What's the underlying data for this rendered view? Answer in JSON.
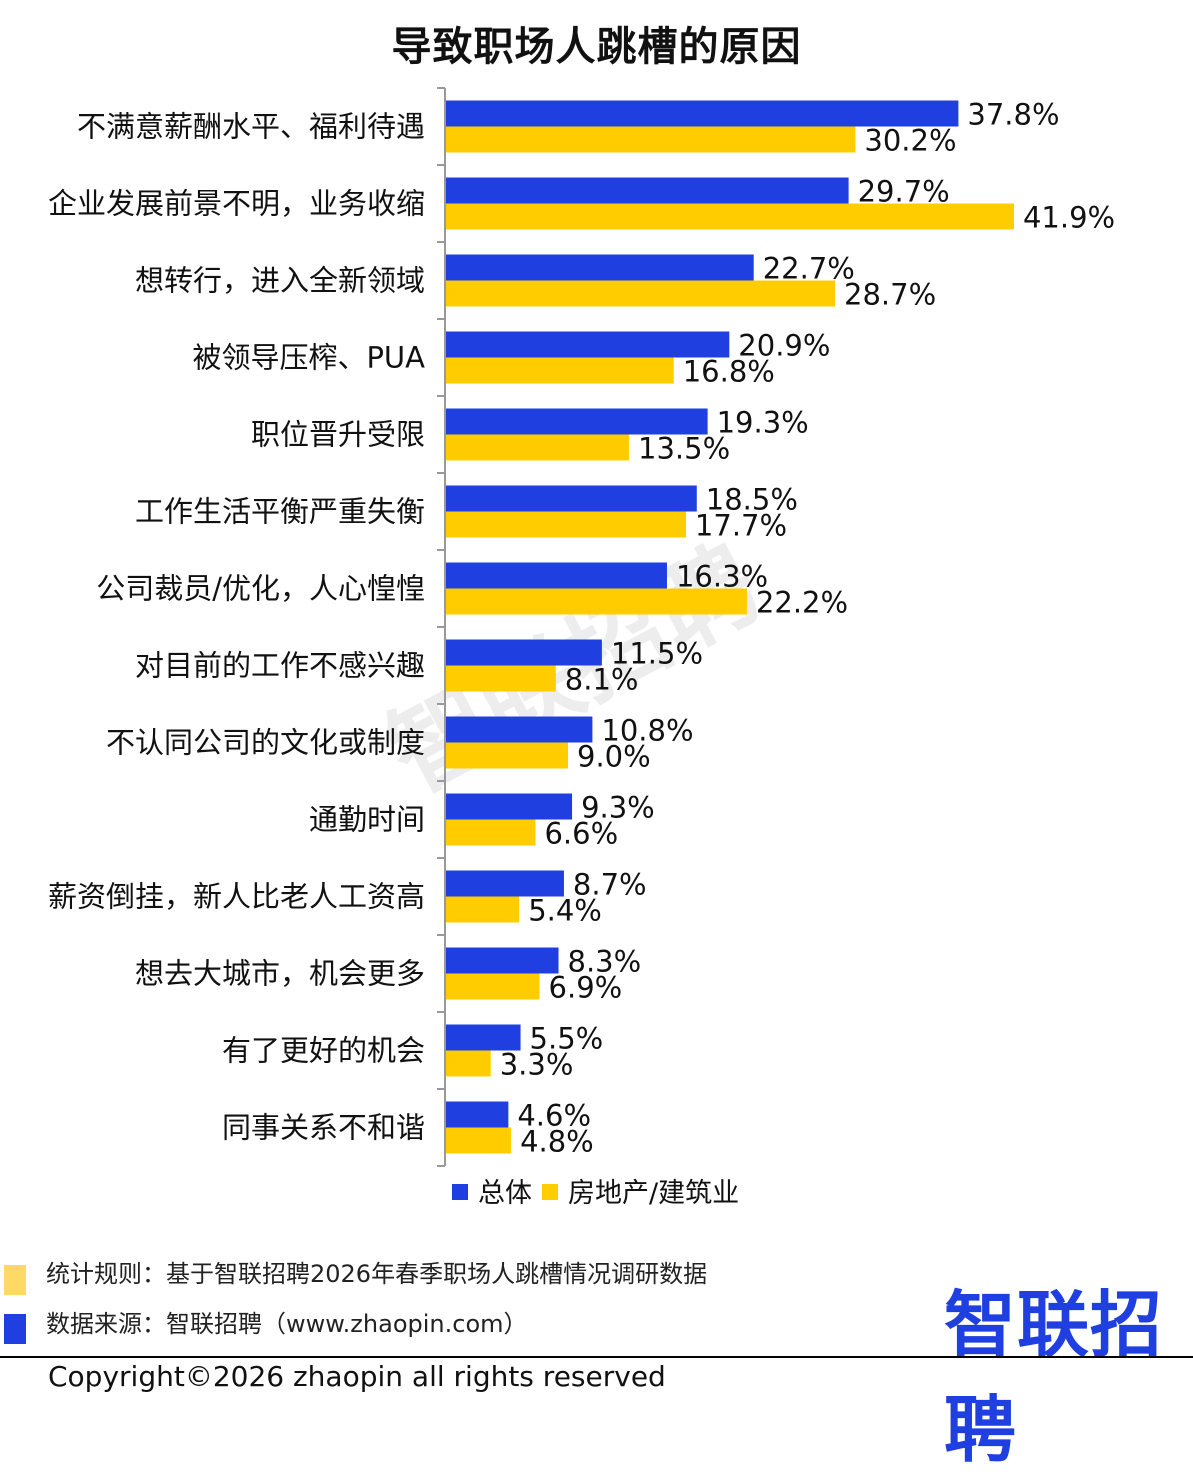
{
  "title": "导致职场人跳槽的原因",
  "chart_data": {
    "type": "bar",
    "orientation": "horizontal",
    "title": "导致职场人跳槽的原因",
    "categories": [
      "不满意薪酬水平、福利待遇",
      "企业发展前景不明，业务收缩",
      "想转行，进入全新领域",
      "被领导压榨、PUA",
      "职位晋升受限",
      "工作生活平衡严重失衡",
      "公司裁员/优化，人心惶惶",
      "对目前的工作不感兴趣",
      "不认同公司的文化或制度",
      "通勤时间",
      "薪资倒挂，新人比老人工资高",
      "想去大城市，机会更多",
      "有了更好的机会",
      "同事关系不和谐"
    ],
    "series": [
      {
        "name": "总体",
        "color": "#1f3fe0",
        "values": [
          37.8,
          29.7,
          22.7,
          20.9,
          19.3,
          18.5,
          16.3,
          11.5,
          10.8,
          9.3,
          8.7,
          8.3,
          5.5,
          4.6
        ],
        "labels": [
          "37.8%",
          "29.7%",
          "22.7%",
          "20.9%",
          "19.3%",
          "18.5%",
          "16.3%",
          "11.5%",
          "10.8%",
          "9.3%",
          "8.7%",
          "8.3%",
          "5.5%",
          "4.6%"
        ]
      },
      {
        "name": "房地产/建筑业",
        "color": "#ffcc00",
        "values": [
          30.2,
          41.9,
          28.7,
          16.8,
          13.5,
          17.7,
          22.2,
          8.1,
          9.0,
          6.6,
          5.4,
          6.9,
          3.3,
          4.8
        ],
        "labels": [
          "30.2%",
          "41.9%",
          "28.7%",
          "16.8%",
          "13.5%",
          "17.7%",
          "22.2%",
          "8.1%",
          "9.0%",
          "6.6%",
          "5.4%",
          "6.9%",
          "3.3%",
          "4.8%"
        ]
      }
    ],
    "legend": "bottom",
    "grid": false,
    "xlim": [
      0,
      45
    ]
  },
  "watermark": "智联招聘",
  "footer": {
    "rule": "统计规则：基于智联招聘2026年春季职场人跳槽情况调研数据",
    "source": "数据来源：智联招聘（www.zhaopin.com）",
    "rule_marker_color": "#ffd966",
    "source_marker_color": "#1f3fe0"
  },
  "logo": "智联招聘",
  "copyright": "Copyright©2026 zhaopin all rights reserved"
}
